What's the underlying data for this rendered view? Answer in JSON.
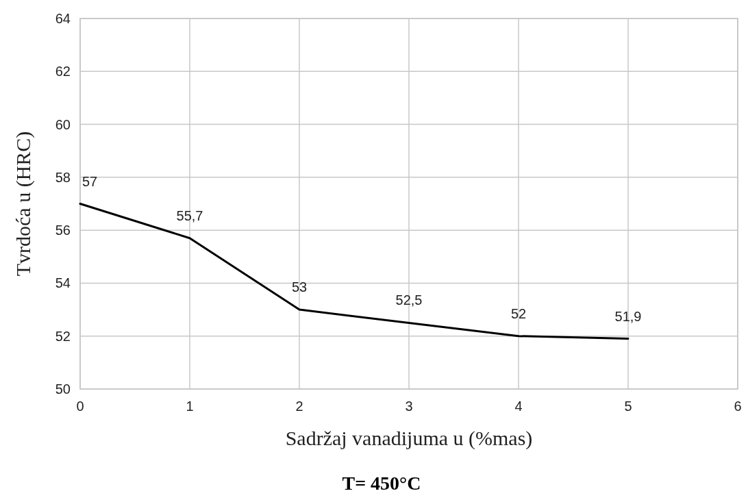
{
  "chart_data": {
    "type": "line",
    "xlabel": "Sadržaj vanadijuma  u (%mas)",
    "ylabel": "Tvrdoća u (HRC)",
    "annotations": [
      "T= 450°C"
    ],
    "x": [
      0,
      1,
      2,
      3,
      4,
      5
    ],
    "series": [
      {
        "color": "#000000",
        "values": [
          57,
          55.7,
          53,
          52.5,
          52,
          51.9
        ],
        "value_labels": [
          "57",
          "55,7",
          "53",
          "52,5",
          "52",
          "51,9"
        ]
      }
    ],
    "xlim": [
      0,
      6
    ],
    "xticks": [
      0,
      1,
      2,
      3,
      4,
      5,
      6
    ],
    "ylim": [
      50,
      64
    ],
    "yticks": [
      50,
      52,
      54,
      56,
      58,
      60,
      62,
      64
    ],
    "grid": true,
    "marker": "none",
    "line_style": "solid"
  }
}
